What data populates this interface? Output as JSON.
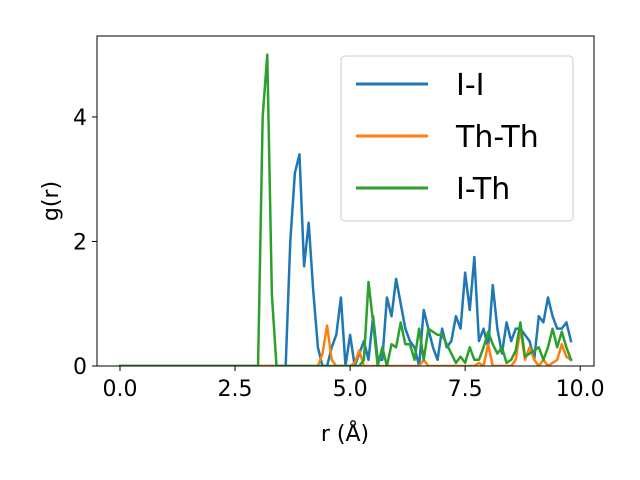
{
  "chart_data": {
    "type": "line",
    "title": "",
    "xlabel": "r (Å)",
    "ylabel": "g(r)",
    "xlim": [
      -0.5,
      10.3
    ],
    "ylim": [
      0,
      5.3
    ],
    "xticks": [
      0.0,
      2.5,
      5.0,
      7.5,
      10.0
    ],
    "xtick_labels": [
      "0.0",
      "2.5",
      "5.0",
      "7.5",
      "10.0"
    ],
    "yticks": [
      0,
      2,
      4
    ],
    "ytick_labels": [
      "0",
      "2",
      "4"
    ],
    "grid": false,
    "legend_position": "top-right",
    "series": [
      {
        "name": "I-I",
        "color": "#1f77b4",
        "points": [
          [
            0,
            0
          ],
          [
            3.5,
            0
          ],
          [
            3.6,
            0
          ],
          [
            3.7,
            2.0
          ],
          [
            3.8,
            3.1
          ],
          [
            3.9,
            3.4
          ],
          [
            4.0,
            1.6
          ],
          [
            4.1,
            2.3
          ],
          [
            4.2,
            1.2
          ],
          [
            4.3,
            0.3
          ],
          [
            4.4,
            0
          ],
          [
            4.5,
            0
          ],
          [
            4.6,
            0.3
          ],
          [
            4.7,
            0.5
          ],
          [
            4.8,
            1.1
          ],
          [
            4.9,
            0
          ],
          [
            5.0,
            0.5
          ],
          [
            5.1,
            0
          ],
          [
            5.2,
            0.2
          ],
          [
            5.3,
            0.4
          ],
          [
            5.4,
            0.1
          ],
          [
            5.5,
            0.8
          ],
          [
            5.6,
            0.1
          ],
          [
            5.7,
            0.1
          ],
          [
            5.8,
            1.1
          ],
          [
            5.9,
            0.8
          ],
          [
            6.0,
            1.4
          ],
          [
            6.1,
            1.0
          ],
          [
            6.2,
            0.6
          ],
          [
            6.3,
            0.4
          ],
          [
            6.4,
            0.3
          ],
          [
            6.5,
            0
          ],
          [
            6.6,
            0.9
          ],
          [
            6.7,
            0.6
          ],
          [
            6.8,
            0.3
          ],
          [
            6.9,
            0.1
          ],
          [
            7.0,
            0.6
          ],
          [
            7.1,
            0.3
          ],
          [
            7.2,
            0.4
          ],
          [
            7.3,
            0.8
          ],
          [
            7.4,
            0.6
          ],
          [
            7.5,
            1.5
          ],
          [
            7.6,
            0.9
          ],
          [
            7.7,
            1.75
          ],
          [
            7.8,
            0.4
          ],
          [
            7.9,
            0.6
          ],
          [
            8.0,
            0.3
          ],
          [
            8.1,
            1.3
          ],
          [
            8.2,
            0.6
          ],
          [
            8.3,
            0.2
          ],
          [
            8.4,
            0.7
          ],
          [
            8.5,
            0.4
          ],
          [
            8.6,
            0.6
          ],
          [
            8.7,
            0.6
          ],
          [
            8.8,
            0.5
          ],
          [
            8.9,
            0.4
          ],
          [
            9.0,
            0.1
          ],
          [
            9.1,
            0.8
          ],
          [
            9.2,
            0.7
          ],
          [
            9.3,
            1.1
          ],
          [
            9.4,
            0.8
          ],
          [
            9.5,
            0.6
          ],
          [
            9.6,
            0.6
          ],
          [
            9.7,
            0.7
          ],
          [
            9.8,
            0.4
          ]
        ]
      },
      {
        "name": "Th-Th",
        "color": "#ff7f0e",
        "points": [
          [
            0,
            0
          ],
          [
            4.3,
            0
          ],
          [
            4.4,
            0.2
          ],
          [
            4.5,
            0.65
          ],
          [
            4.6,
            0.1
          ],
          [
            4.7,
            0
          ],
          [
            5.0,
            0
          ],
          [
            5.1,
            0.05
          ],
          [
            5.2,
            0.25
          ],
          [
            5.3,
            0
          ],
          [
            6.5,
            0
          ],
          [
            6.6,
            0.1
          ],
          [
            6.7,
            0
          ],
          [
            7.7,
            0
          ],
          [
            7.8,
            0.05
          ],
          [
            7.9,
            0
          ],
          [
            8.0,
            0.35
          ],
          [
            8.1,
            0
          ],
          [
            8.5,
            0
          ],
          [
            8.6,
            0.1
          ],
          [
            8.7,
            0.6
          ],
          [
            8.8,
            0.1
          ],
          [
            8.9,
            0.3
          ],
          [
            9.0,
            0.1
          ],
          [
            9.1,
            0
          ],
          [
            9.2,
            0.1
          ],
          [
            9.3,
            0
          ],
          [
            9.5,
            0.1
          ],
          [
            9.6,
            0.35
          ],
          [
            9.7,
            0.15
          ],
          [
            9.8,
            0.1
          ]
        ]
      },
      {
        "name": "I-Th",
        "color": "#2ca02c",
        "points": [
          [
            0,
            0
          ],
          [
            3.0,
            0
          ],
          [
            3.1,
            4.0
          ],
          [
            3.2,
            5.0
          ],
          [
            3.3,
            1.15
          ],
          [
            3.4,
            0
          ],
          [
            5.2,
            0
          ],
          [
            5.3,
            0.1
          ],
          [
            5.4,
            1.35
          ],
          [
            5.5,
            0.7
          ],
          [
            5.6,
            0
          ],
          [
            5.7,
            0.3
          ],
          [
            5.8,
            0
          ],
          [
            5.9,
            0.35
          ],
          [
            6.0,
            0.3
          ],
          [
            6.1,
            0.7
          ],
          [
            6.2,
            0.35
          ],
          [
            6.3,
            0.35
          ],
          [
            6.4,
            0.1
          ],
          [
            6.5,
            0.6
          ],
          [
            6.6,
            0.1
          ],
          [
            6.7,
            0.6
          ],
          [
            6.8,
            0.55
          ],
          [
            6.9,
            0.5
          ],
          [
            7.0,
            0.5
          ],
          [
            7.1,
            0.35
          ],
          [
            7.2,
            0.2
          ],
          [
            7.3,
            0.05
          ],
          [
            7.4,
            0.15
          ],
          [
            7.5,
            0.05
          ],
          [
            7.6,
            0.3
          ],
          [
            7.7,
            0.1
          ],
          [
            7.8,
            0.1
          ],
          [
            7.9,
            0.3
          ],
          [
            8.0,
            0.55
          ],
          [
            8.1,
            0.35
          ],
          [
            8.2,
            0.2
          ],
          [
            8.3,
            0.3
          ],
          [
            8.4,
            0.05
          ],
          [
            8.5,
            0.1
          ],
          [
            8.6,
            0.25
          ],
          [
            8.7,
            0.7
          ],
          [
            8.8,
            0.15
          ],
          [
            8.9,
            0.2
          ],
          [
            9.0,
            0.25
          ],
          [
            9.1,
            0.3
          ],
          [
            9.2,
            0.1
          ],
          [
            9.3,
            0.3
          ],
          [
            9.4,
            0.6
          ],
          [
            9.5,
            0.3
          ],
          [
            9.6,
            0.55
          ],
          [
            9.7,
            0.3
          ],
          [
            9.8,
            0.1
          ]
        ]
      }
    ]
  }
}
